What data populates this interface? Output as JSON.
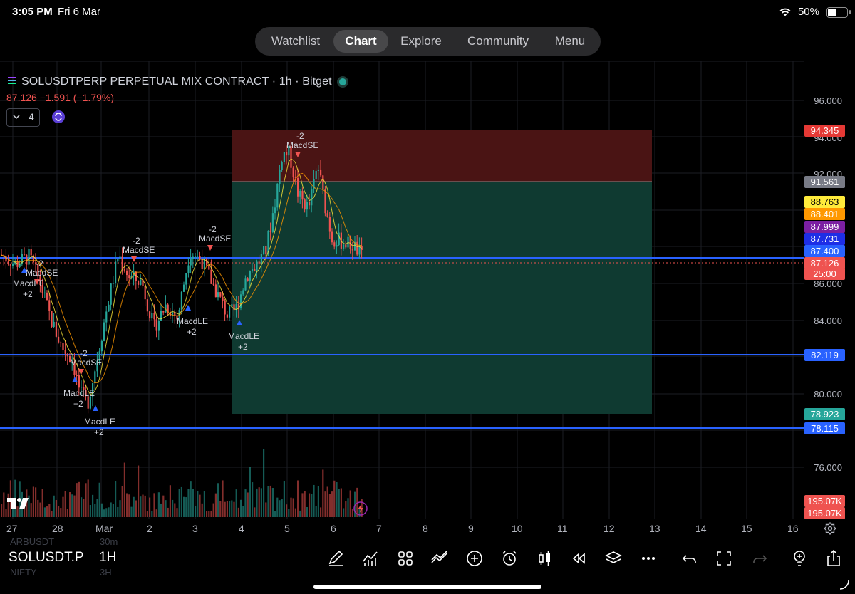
{
  "status_bar": {
    "time": "3:05 PM",
    "date": "Fri 6 Mar",
    "battery": "50%"
  },
  "nav": {
    "tabs": [
      "Watchlist",
      "Chart",
      "Explore",
      "Community",
      "Menu"
    ],
    "active": "Chart"
  },
  "symbol": {
    "title": "SOLUSDTPERP PERPETUAL MIX CONTRACT · 1h · Bitget",
    "change": "87.126  −1.591 (−1.79%)",
    "indicator_count": "4"
  },
  "colors": {
    "up": "#26a69a",
    "down": "#ef5350",
    "hline": "#2962ff",
    "stop_zone": "#4a1414",
    "target_zone": "#0f3a31"
  },
  "price_axis": [
    "96.000",
    "94.000",
    "92.000",
    "86.000",
    "84.000",
    "80.000",
    "76.000"
  ],
  "badges": {
    "stop": "94.345",
    "entry": "91.561",
    "ma1": "88.763",
    "ma2": "88.401",
    "ma3": "87.999",
    "ma4": "87.731",
    "line1": "87.400",
    "last": "87.126",
    "countdown": "25:00",
    "line2": "82.119",
    "target": "78.923",
    "line3": "78.115",
    "vol1": "195.07K",
    "vol2": "195.07K"
  },
  "x_axis": [
    "27",
    "28",
    "Mar",
    "2",
    "3",
    "4",
    "5",
    "6",
    "7",
    "8",
    "9",
    "10",
    "11",
    "12",
    "13",
    "14",
    "15",
    "16"
  ],
  "signals": [
    {
      "label": "MacdSE",
      "qty": "-2"
    },
    {
      "label": "MacdLT",
      "qty": "+2"
    },
    {
      "label": "MacdSE",
      "qty": "-2"
    },
    {
      "label": "MacdSE",
      "qty": "-2"
    },
    {
      "label": "MacdLE",
      "qty": "+2"
    },
    {
      "label": "MacdLE",
      "qty": "+2"
    },
    {
      "label": "MacdSE",
      "qty": "-2"
    },
    {
      "label": "MacdLE",
      "qty": "+2"
    },
    {
      "label": "MacdLE",
      "qty": "+2"
    },
    {
      "label": "MacdSE",
      "qty": "-2"
    }
  ],
  "bottom": {
    "ticker": "SOLUSDT.P",
    "timeframe": "1H",
    "ghost1": "ARBUSDT",
    "ghost2": "30m",
    "ghost3": "NIFTY",
    "ghost4": "3H"
  }
}
